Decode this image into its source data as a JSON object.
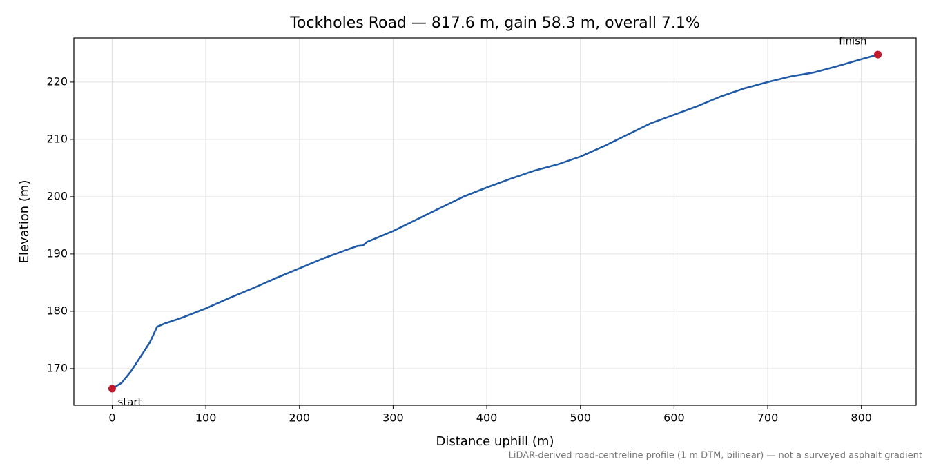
{
  "chart_data": {
    "type": "line",
    "title": "Tockholes Road — 817.6 m, gain 58.3 m, overall 7.1%",
    "xlabel": "Distance uphill (m)",
    "ylabel": "Elevation (m)",
    "note": "LiDAR-derived road-centreline profile (1 m DTM, bilinear) — not a surveyed asphalt gradient",
    "x": [
      0,
      10,
      20,
      30,
      40,
      48,
      55,
      75,
      100,
      125,
      150,
      175,
      200,
      225,
      250,
      262,
      268,
      272,
      275,
      300,
      325,
      350,
      375,
      400,
      425,
      450,
      475,
      500,
      525,
      550,
      575,
      600,
      625,
      650,
      675,
      700,
      725,
      750,
      775,
      800,
      817.6
    ],
    "series": [
      {
        "color": "#1f5aa6",
        "values": [
          166.5,
          167.5,
          169.5,
          172,
          174.5,
          177.3,
          177.8,
          178.9,
          180.5,
          182.3,
          184.0,
          185.8,
          187.5,
          189.2,
          190.7,
          191.4,
          191.5,
          192.1,
          192.3,
          194.0,
          196.0,
          198.0,
          200.0,
          201.6,
          203.1,
          204.5,
          205.6,
          207.0,
          208.8,
          210.8,
          212.8,
          214.3,
          215.8,
          217.5,
          218.9,
          220.0,
          221.0,
          221.7,
          222.8,
          224.0,
          224.8
        ]
      }
    ],
    "markers": [
      {
        "label": "start",
        "x": 0,
        "y": 166.5,
        "color": "#c0192b"
      },
      {
        "label": "finish",
        "x": 817.6,
        "y": 224.8,
        "color": "#c0192b"
      }
    ],
    "xlim": [
      -40.88,
      858.48
    ],
    "ylim": [
      163.6,
      227.7
    ],
    "xticks": [
      0,
      100,
      200,
      300,
      400,
      500,
      600,
      700,
      800
    ],
    "yticks": [
      170,
      180,
      190,
      200,
      210,
      220
    ],
    "grid": true
  }
}
